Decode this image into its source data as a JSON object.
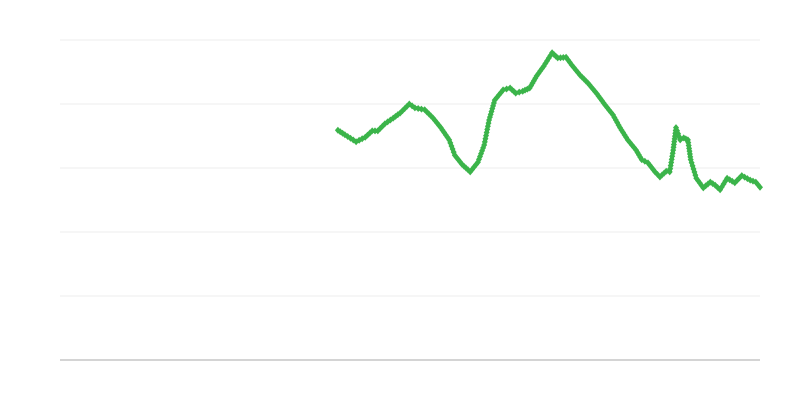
{
  "chart_data": {
    "type": "line",
    "title": "",
    "xlabel": "",
    "ylabel": "",
    "xlim": [
      0,
      100
    ],
    "ylim": [
      0,
      5
    ],
    "grid": true,
    "gridlines_y": [
      1,
      2,
      3,
      4,
      5
    ],
    "colors": {
      "series": "#3bb44a",
      "grid": "#eeeeee",
      "axis": "#aaaaaa"
    },
    "marker": "diamond",
    "series": [
      {
        "x": [
          39.7,
          40.7,
          42.3,
          43.6,
          44.6,
          45.4,
          46.4,
          47.6,
          48.6,
          49.9,
          50.7,
          52.1,
          53.3,
          54.4,
          55.6,
          56.4,
          57.4,
          58.6,
          59.7,
          60.6,
          61.3,
          62.1,
          63.3,
          64.3,
          65.1,
          66.1,
          67.1,
          68.1,
          69.1,
          70.3,
          71.1,
          72.3,
          73.1,
          74.3,
          75.4,
          76.7,
          77.9,
          79.0,
          80.0,
          81.1,
          82.3,
          83.1,
          84.0,
          85.0,
          85.7,
          86.6,
          87.1,
          87.6,
          88.0,
          88.6,
          89.1,
          89.7,
          90.1,
          90.9,
          91.9,
          92.9,
          93.6,
          94.3,
          95.3,
          96.4,
          97.4,
          98.6,
          99.4,
          100.0
        ],
        "y": [
          3.59,
          3.52,
          3.41,
          3.48,
          3.58,
          3.58,
          3.69,
          3.78,
          3.86,
          4.0,
          3.94,
          3.91,
          3.78,
          3.63,
          3.44,
          3.2,
          3.06,
          2.94,
          3.09,
          3.36,
          3.75,
          4.06,
          4.22,
          4.25,
          4.17,
          4.2,
          4.25,
          4.44,
          4.59,
          4.8,
          4.72,
          4.73,
          4.61,
          4.45,
          4.33,
          4.16,
          3.98,
          3.83,
          3.63,
          3.44,
          3.28,
          3.13,
          3.08,
          2.94,
          2.86,
          2.95,
          2.94,
          3.28,
          3.63,
          3.44,
          3.47,
          3.44,
          3.13,
          2.84,
          2.69,
          2.78,
          2.73,
          2.66,
          2.84,
          2.77,
          2.88,
          2.81,
          2.78,
          2.7
        ]
      }
    ]
  }
}
